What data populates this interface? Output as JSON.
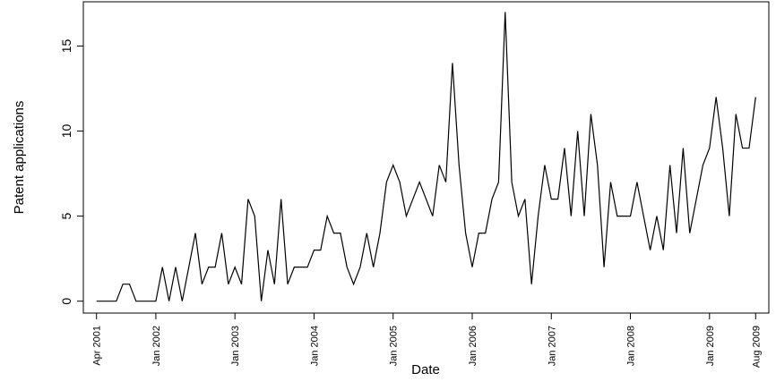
{
  "chart_data": {
    "type": "line",
    "x_label": "Date",
    "y_label": "Patent applications",
    "x": [
      "2001-04",
      "2001-05",
      "2001-06",
      "2001-07",
      "2001-08",
      "2001-09",
      "2001-10",
      "2001-11",
      "2001-12",
      "2002-01",
      "2002-02",
      "2002-03",
      "2002-04",
      "2002-05",
      "2002-06",
      "2002-07",
      "2002-08",
      "2002-09",
      "2002-10",
      "2002-11",
      "2002-12",
      "2003-01",
      "2003-02",
      "2003-03",
      "2003-04",
      "2003-05",
      "2003-06",
      "2003-07",
      "2003-08",
      "2003-09",
      "2003-10",
      "2003-11",
      "2003-12",
      "2004-01",
      "2004-02",
      "2004-03",
      "2004-04",
      "2004-05",
      "2004-06",
      "2004-07",
      "2004-08",
      "2004-09",
      "2004-10",
      "2004-11",
      "2004-12",
      "2005-01",
      "2005-02",
      "2005-03",
      "2005-04",
      "2005-05",
      "2005-06",
      "2005-07",
      "2005-08",
      "2005-09",
      "2005-10",
      "2005-11",
      "2005-12",
      "2006-01",
      "2006-02",
      "2006-03",
      "2006-04",
      "2006-05",
      "2006-06",
      "2006-07",
      "2006-08",
      "2006-09",
      "2006-10",
      "2006-11",
      "2006-12",
      "2007-01",
      "2007-02",
      "2007-03",
      "2007-04",
      "2007-05",
      "2007-06",
      "2007-07",
      "2007-08",
      "2007-09",
      "2007-10",
      "2007-11",
      "2007-12",
      "2008-01",
      "2008-02",
      "2008-03",
      "2008-04",
      "2008-05",
      "2008-06",
      "2008-07",
      "2008-08",
      "2008-09",
      "2008-10",
      "2008-11",
      "2008-12",
      "2009-01",
      "2009-02",
      "2009-03",
      "2009-04",
      "2009-05",
      "2009-06",
      "2009-07",
      "2009-08"
    ],
    "series": [
      {
        "color": "#000000",
        "values": [
          0,
          0,
          0,
          0,
          1,
          1,
          0,
          0,
          0,
          0,
          2,
          0,
          2,
          0,
          2,
          4,
          1,
          2,
          2,
          4,
          1,
          2,
          1,
          6,
          5,
          0,
          3,
          1,
          6,
          1,
          2,
          2,
          2,
          3,
          3,
          5,
          4,
          4,
          2,
          1,
          2,
          4,
          2,
          4,
          7,
          8,
          7,
          5,
          6,
          7,
          6,
          5,
          8,
          7,
          14,
          8,
          4,
          2,
          4,
          4,
          6,
          7,
          17,
          7,
          5,
          6,
          1,
          5,
          8,
          6,
          6,
          9,
          5,
          10,
          5,
          11,
          8,
          2,
          7,
          5,
          5,
          5,
          7,
          5,
          3,
          5,
          3,
          8,
          4,
          9,
          4,
          6,
          8,
          9,
          12,
          9,
          5,
          11,
          9,
          9,
          12
        ]
      }
    ],
    "xlim": [
      "2001-02",
      "2009-10"
    ],
    "xticks": [
      {
        "value": "2001-04",
        "label": "Apr 2001"
      },
      {
        "value": "2002-01",
        "label": "Jan 2002"
      },
      {
        "value": "2003-01",
        "label": "Jan 2003"
      },
      {
        "value": "2004-01",
        "label": "Jan 2004"
      },
      {
        "value": "2005-01",
        "label": "Jan 2005"
      },
      {
        "value": "2006-01",
        "label": "Jan 2006"
      },
      {
        "value": "2007-01",
        "label": "Jan 2007"
      },
      {
        "value": "2008-01",
        "label": "Jan 2008"
      },
      {
        "value": "2009-01",
        "label": "Jan 2009"
      },
      {
        "value": "2009-08",
        "label": "Aug 2009"
      }
    ],
    "ylim": [
      -0.7,
      17.6
    ],
    "yticks": [
      0,
      5,
      10,
      15
    ]
  }
}
